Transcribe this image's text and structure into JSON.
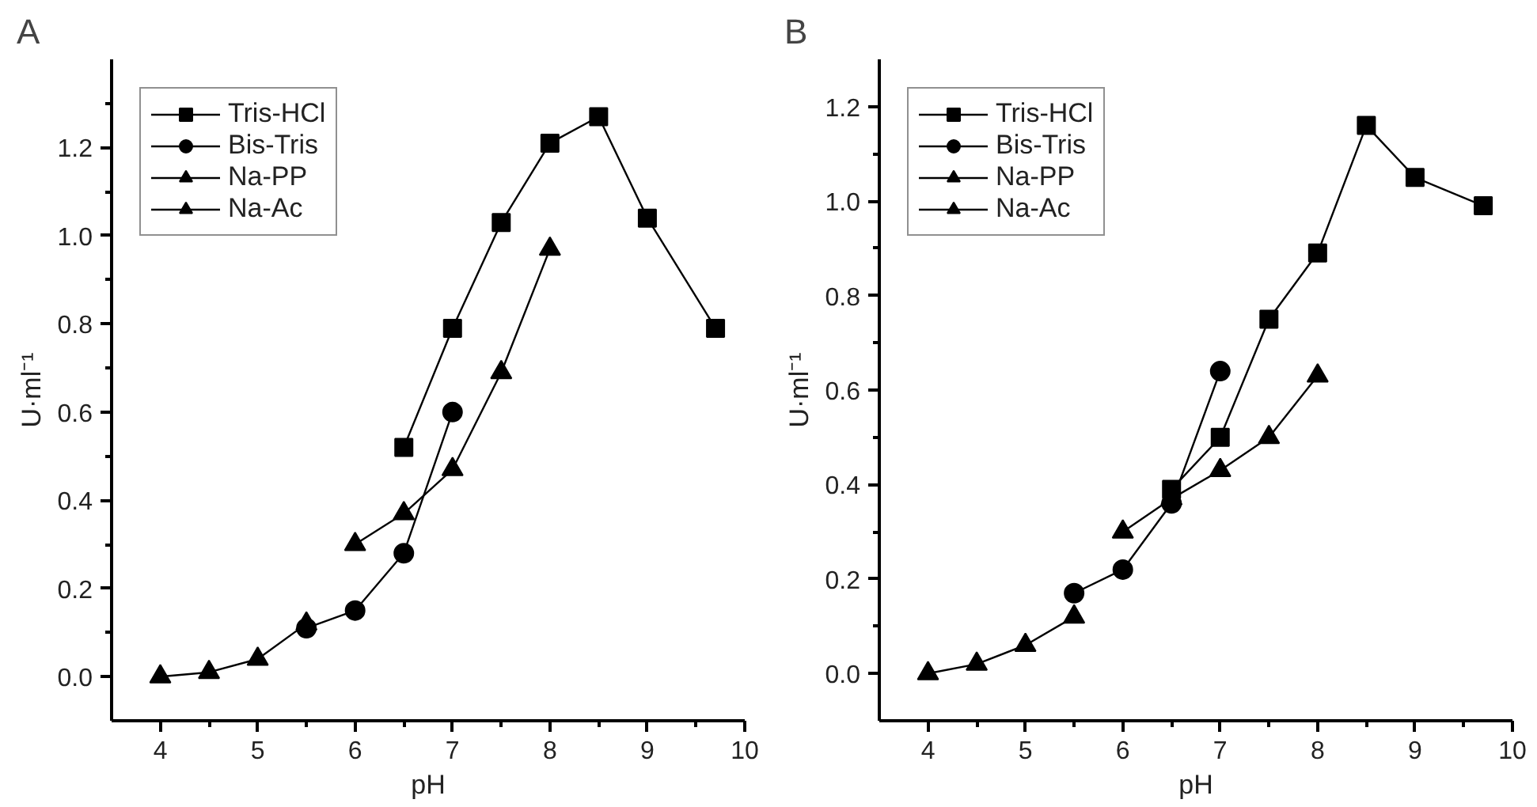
{
  "chart_data": [
    {
      "type": "line",
      "title": "A",
      "xlabel": "pH",
      "ylabel": "U·ml⁻¹",
      "legend": "top left",
      "grid": false,
      "line_style": "solid",
      "xlim": [
        3.5,
        10
      ],
      "ylim": [
        -0.1,
        1.4
      ],
      "xticks": [
        4,
        {
          "value": 4.5,
          "label": null
        },
        5,
        {
          "value": 5.5,
          "label": null
        },
        6,
        {
          "value": 6.5,
          "label": null
        },
        7,
        {
          "value": 7.5,
          "label": null
        },
        8,
        {
          "value": 8.5,
          "label": null
        },
        9,
        {
          "value": 9.5,
          "label": null
        },
        10
      ],
      "yticks": [
        {
          "value": 0.0,
          "label": "0.0"
        },
        {
          "value": 0.1,
          "label": null
        },
        0.2,
        {
          "value": 0.3,
          "label": null
        },
        0.4,
        {
          "value": 0.5,
          "label": null
        },
        0.6,
        {
          "value": 0.7,
          "label": null
        },
        0.8,
        {
          "value": 0.9,
          "label": null
        },
        {
          "value": 1.0,
          "label": "1.0"
        },
        {
          "value": 1.1,
          "label": null
        },
        1.2,
        {
          "value": 1.3,
          "label": null
        }
      ],
      "series": [
        {
          "name": "Tris-HCl",
          "color": "#000000",
          "marker": "square",
          "x": [
            6.5,
            7,
            7.5,
            8,
            8.5,
            9,
            9.7
          ],
          "values": [
            0.52,
            0.79,
            1.03,
            1.21,
            1.27,
            1.04,
            0.79
          ]
        },
        {
          "name": "Bis-Tris",
          "color": "#000000",
          "marker": "circle",
          "x": [
            5.5,
            6,
            6.5,
            7
          ],
          "values": [
            0.11,
            0.15,
            0.28,
            0.6
          ]
        },
        {
          "name": "Na-PP",
          "color": "#000000",
          "marker": "triangle",
          "x": [
            6,
            6.5,
            7,
            7.5,
            8
          ],
          "values": [
            0.3,
            0.37,
            0.47,
            0.69,
            0.97
          ]
        },
        {
          "name": "Na-Ac",
          "color": "#000000",
          "marker": "triangle",
          "x": [
            4,
            4.5,
            5,
            5.5
          ],
          "values": [
            0.0,
            0.01,
            0.04,
            0.12
          ]
        }
      ]
    },
    {
      "type": "line",
      "title": "B",
      "xlabel": "pH",
      "ylabel": "U·ml⁻¹",
      "legend": "top left",
      "grid": false,
      "line_style": "solid",
      "xlim": [
        3.5,
        10
      ],
      "ylim": [
        -0.1,
        1.3
      ],
      "xticks": [
        4,
        {
          "value": 4.5,
          "label": null
        },
        5,
        {
          "value": 5.5,
          "label": null
        },
        6,
        {
          "value": 6.5,
          "label": null
        },
        7,
        {
          "value": 7.5,
          "label": null
        },
        8,
        {
          "value": 8.5,
          "label": null
        },
        9,
        {
          "value": 9.5,
          "label": null
        },
        10
      ],
      "yticks": [
        {
          "value": 0.0,
          "label": "0.0"
        },
        {
          "value": 0.1,
          "label": null
        },
        0.2,
        {
          "value": 0.3,
          "label": null
        },
        0.4,
        {
          "value": 0.5,
          "label": null
        },
        0.6,
        {
          "value": 0.7,
          "label": null
        },
        0.8,
        {
          "value": 0.9,
          "label": null
        },
        {
          "value": 1.0,
          "label": "1.0"
        },
        {
          "value": 1.1,
          "label": null
        },
        1.2
      ],
      "series": [
        {
          "name": "Tris-HCl",
          "color": "#000000",
          "marker": "square",
          "x": [
            6.5,
            7,
            7.5,
            8,
            8.5,
            9,
            9.7
          ],
          "values": [
            0.39,
            0.5,
            0.75,
            0.89,
            1.16,
            1.05,
            0.99
          ]
        },
        {
          "name": "Bis-Tris",
          "color": "#000000",
          "marker": "circle",
          "x": [
            5.5,
            6,
            6.5,
            7
          ],
          "values": [
            0.17,
            0.22,
            0.36,
            0.64
          ]
        },
        {
          "name": "Na-PP",
          "color": "#000000",
          "marker": "triangle",
          "x": [
            6,
            6.5,
            7,
            7.5,
            8
          ],
          "values": [
            0.3,
            0.37,
            0.43,
            0.5,
            0.63
          ]
        },
        {
          "name": "Na-Ac",
          "color": "#000000",
          "marker": "triangle",
          "x": [
            4,
            4.5,
            5,
            5.5
          ],
          "values": [
            0.0,
            0.02,
            0.06,
            0.12
          ]
        }
      ]
    }
  ]
}
